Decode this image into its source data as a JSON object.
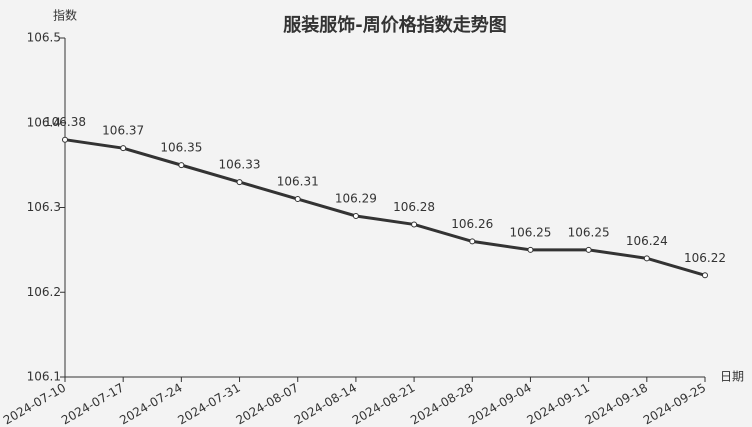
{
  "chart_data": {
    "type": "line",
    "title": "服装服饰-周价格指数走势图",
    "y_label": "指数",
    "x_label": "日期",
    "categories": [
      "2024-07-10",
      "2024-07-17",
      "2024-07-24",
      "2024-07-31",
      "2024-08-07",
      "2024-08-14",
      "2024-08-21",
      "2024-08-28",
      "2024-09-04",
      "2024-09-11",
      "2024-09-18",
      "2024-09-25"
    ],
    "values": [
      106.38,
      106.37,
      106.35,
      106.33,
      106.31,
      106.29,
      106.28,
      106.26,
      106.25,
      106.25,
      106.24,
      106.22
    ],
    "color": "#333333",
    "ylim": [
      106.1,
      106.5
    ],
    "yticks": [
      106.1,
      106.2,
      106.3,
      106.4,
      106.5
    ],
    "grid": false
  }
}
